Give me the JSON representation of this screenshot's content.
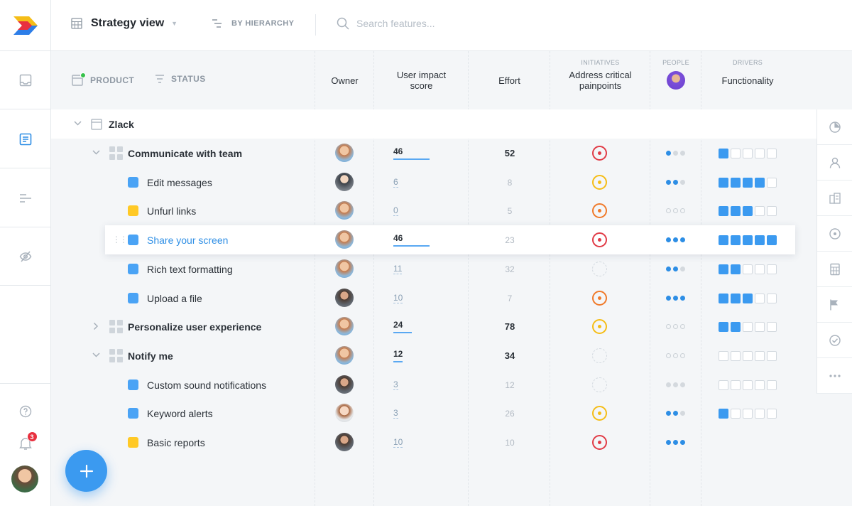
{
  "topbar": {
    "view_title": "Strategy view",
    "hierarchy_label": "BY HIERARCHY",
    "search_placeholder": "Search features..."
  },
  "filters": {
    "product_label": "PRODUCT",
    "status_label": "STATUS"
  },
  "columns": {
    "owner": "Owner",
    "user_impact_line1": "User impact",
    "user_impact_line2": "score",
    "effort": "Effort",
    "initiatives_group": "INITIATIVES",
    "initiative_line1": "Address critical",
    "initiative_line2": "painpoints",
    "people_group": "PEOPLE",
    "drivers_group": "DRIVERS",
    "driver": "Functionality"
  },
  "product": {
    "name": "Zlack"
  },
  "rows": [
    {
      "name": "Communicate with team",
      "level": "component",
      "expanded": true,
      "owner_avatar": "av-a",
      "score": "46",
      "score_fraction": 0.46,
      "effort": "52",
      "initiative": "red",
      "people": [
        "f",
        "g",
        "g"
      ],
      "functionality": 1
    },
    {
      "name": "Edit messages",
      "level": "feature",
      "color": "blue",
      "owner_avatar": "av-b",
      "score": "6",
      "score_fraction": 0,
      "effort": "8",
      "initiative": "yellow",
      "people": [
        "f",
        "f",
        "g"
      ],
      "functionality": 4
    },
    {
      "name": "Unfurl links",
      "level": "feature",
      "color": "yellow",
      "owner_avatar": "av-a",
      "score": "0",
      "score_fraction": 0,
      "effort": "5",
      "initiative": "orange",
      "people": [
        "o",
        "o",
        "o"
      ],
      "functionality": 3
    },
    {
      "name": "Share your screen",
      "level": "feature",
      "color": "blue",
      "selected": true,
      "owner_avatar": "av-a",
      "score": "46",
      "score_fraction": 0.46,
      "effort": "23",
      "initiative": "red",
      "people": [
        "f",
        "f",
        "f"
      ],
      "functionality": 5
    },
    {
      "name": "Rich text formatting",
      "level": "feature",
      "color": "blue",
      "owner_avatar": "av-a",
      "score": "11",
      "score_fraction": 0,
      "effort": "32",
      "initiative": "empty",
      "people": [
        "f",
        "f",
        "g"
      ],
      "functionality": 2
    },
    {
      "name": "Upload a file",
      "level": "feature",
      "color": "blue",
      "owner_avatar": "av-c",
      "score": "10",
      "score_fraction": 0,
      "effort": "7",
      "initiative": "orange",
      "people": [
        "f",
        "f",
        "f"
      ],
      "functionality": 3
    },
    {
      "name": "Personalize user experience",
      "level": "component",
      "expanded": false,
      "owner_avatar": "av-a",
      "score": "24",
      "score_fraction": 0.24,
      "effort": "78",
      "initiative": "yellow",
      "people": [
        "o",
        "o",
        "o"
      ],
      "functionality": 2
    },
    {
      "name": "Notify me",
      "level": "component",
      "expanded": true,
      "owner_avatar": "av-a",
      "score": "12",
      "score_fraction": 0.12,
      "effort": "34",
      "initiative": "empty",
      "people": [
        "o",
        "o",
        "o"
      ],
      "functionality": 0
    },
    {
      "name": "Custom sound notifications",
      "level": "feature",
      "color": "blue",
      "owner_avatar": "av-c",
      "score": "3",
      "score_fraction": 0,
      "effort": "12",
      "initiative": "empty",
      "people": [
        "g",
        "g",
        "g"
      ],
      "functionality": 0
    },
    {
      "name": "Keyword alerts",
      "level": "feature",
      "color": "blue",
      "owner_avatar": "av-d",
      "score": "3",
      "score_fraction": 0,
      "effort": "26",
      "initiative": "yellow",
      "people": [
        "f",
        "f",
        "g"
      ],
      "functionality": 1
    },
    {
      "name": "Basic reports",
      "level": "feature",
      "color": "yellow",
      "owner_avatar": "av-c",
      "score": "10",
      "score_fraction": 0,
      "effort": "10",
      "initiative": "red",
      "people": [
        "f",
        "f",
        "f"
      ],
      "functionality": null
    }
  ],
  "notifications": {
    "badge_count": "3"
  },
  "rail_icons": [
    "pie-chart-icon",
    "person-icon",
    "buildings-icon",
    "target-icon",
    "calculator-icon",
    "flag-icon",
    "check-circle-icon",
    "more-icon"
  ],
  "colors": {
    "accent": "#2d8ee5",
    "fab": "#3b9af0",
    "red": "#e13b46",
    "orange": "#f07a2a",
    "yellow": "#f5bd17"
  }
}
